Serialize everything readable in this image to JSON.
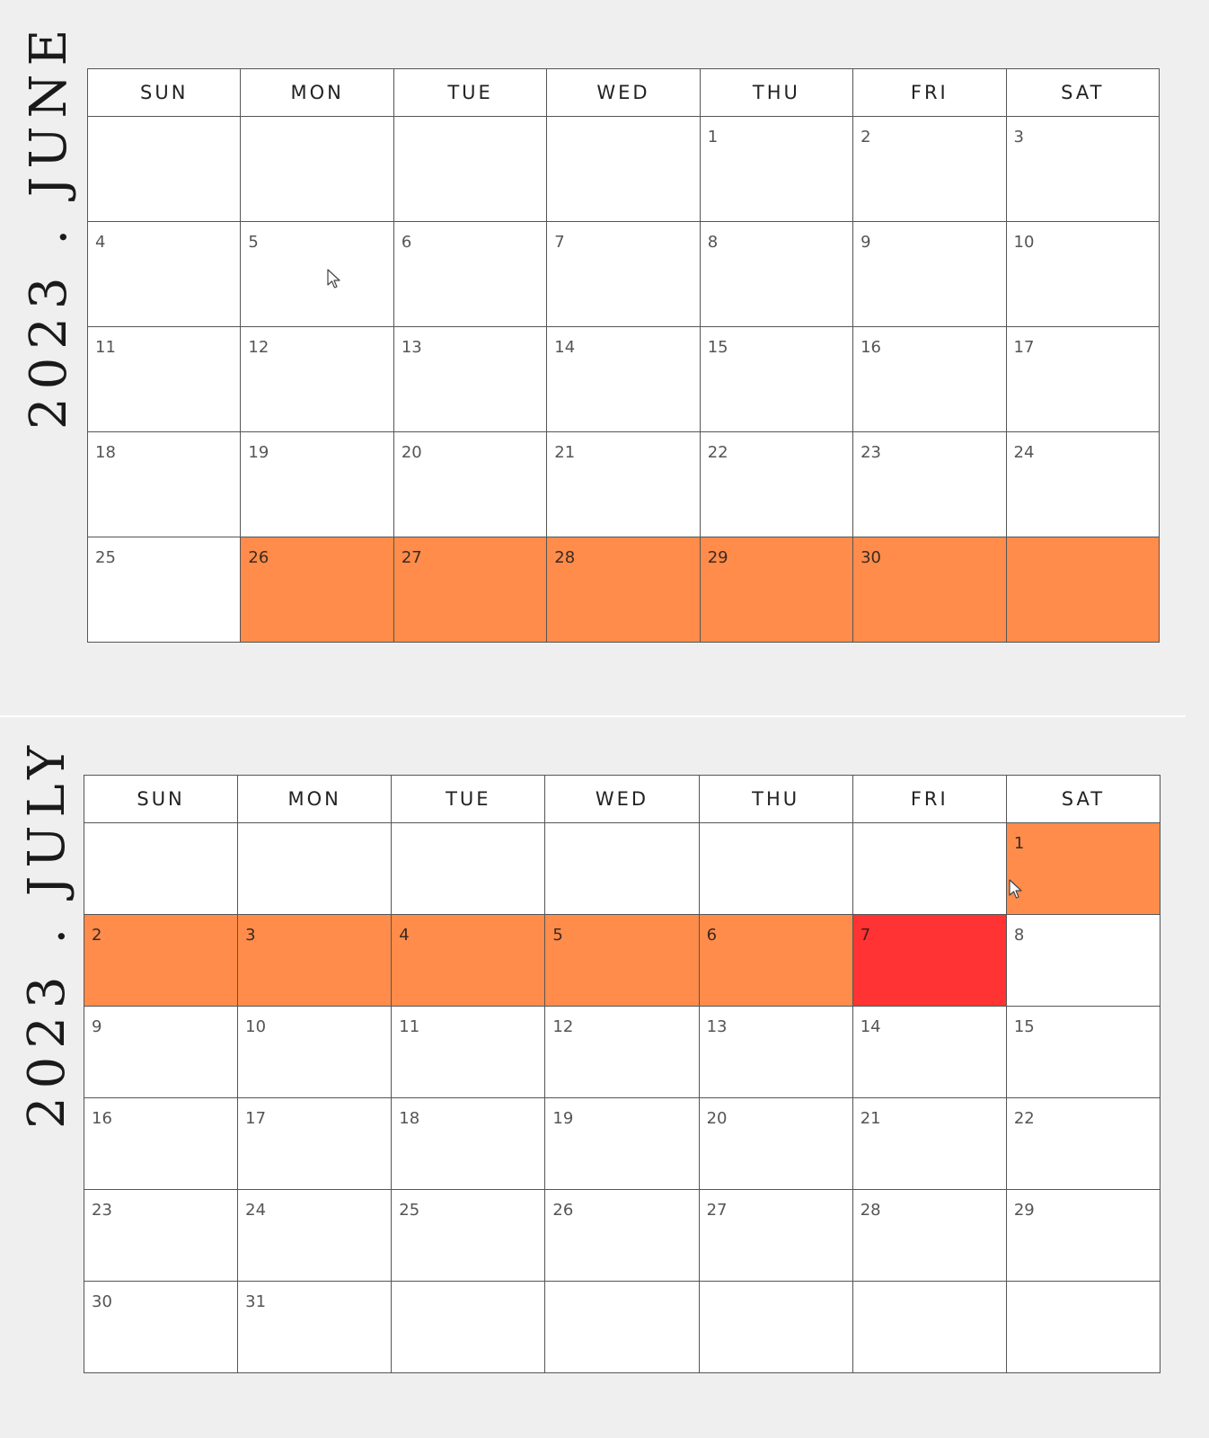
{
  "weekdays": [
    "SUN",
    "MON",
    "TUE",
    "WED",
    "THU",
    "FRI",
    "SAT"
  ],
  "colors": {
    "page_background": "#efefef",
    "cell_background": "#ffffff",
    "grid_line": "#555555",
    "highlight_orange": "#ff8c4a",
    "highlight_red": "#ff3333"
  },
  "cursor_icon": "mouse-pointer-icon",
  "months": [
    {
      "id": "june",
      "title": "2023 . JUNE",
      "weeks": [
        [
          {
            "day": ""
          },
          {
            "day": ""
          },
          {
            "day": ""
          },
          {
            "day": ""
          },
          {
            "day": "1"
          },
          {
            "day": "2"
          },
          {
            "day": "3"
          }
        ],
        [
          {
            "day": "4"
          },
          {
            "day": "5"
          },
          {
            "day": "6"
          },
          {
            "day": "7"
          },
          {
            "day": "8"
          },
          {
            "day": "9"
          },
          {
            "day": "10"
          }
        ],
        [
          {
            "day": "11"
          },
          {
            "day": "12"
          },
          {
            "day": "13"
          },
          {
            "day": "14"
          },
          {
            "day": "15"
          },
          {
            "day": "16"
          },
          {
            "day": "17"
          }
        ],
        [
          {
            "day": "18"
          },
          {
            "day": "19"
          },
          {
            "day": "20"
          },
          {
            "day": "21"
          },
          {
            "day": "22"
          },
          {
            "day": "23"
          },
          {
            "day": "24"
          }
        ],
        [
          {
            "day": "25"
          },
          {
            "day": "26",
            "highlight": "orange"
          },
          {
            "day": "27",
            "highlight": "orange"
          },
          {
            "day": "28",
            "highlight": "orange"
          },
          {
            "day": "29",
            "highlight": "orange"
          },
          {
            "day": "30",
            "highlight": "orange"
          },
          {
            "day": "",
            "highlight": "orange"
          }
        ]
      ]
    },
    {
      "id": "july",
      "title": "2023 . JULY",
      "weeks": [
        [
          {
            "day": ""
          },
          {
            "day": ""
          },
          {
            "day": ""
          },
          {
            "day": ""
          },
          {
            "day": ""
          },
          {
            "day": ""
          },
          {
            "day": "1",
            "highlight": "orange"
          }
        ],
        [
          {
            "day": "2",
            "highlight": "orange"
          },
          {
            "day": "3",
            "highlight": "orange"
          },
          {
            "day": "4",
            "highlight": "orange"
          },
          {
            "day": "5",
            "highlight": "orange"
          },
          {
            "day": "6",
            "highlight": "orange"
          },
          {
            "day": "7",
            "highlight": "red"
          },
          {
            "day": "8"
          }
        ],
        [
          {
            "day": "9"
          },
          {
            "day": "10"
          },
          {
            "day": "11"
          },
          {
            "day": "12"
          },
          {
            "day": "13"
          },
          {
            "day": "14"
          },
          {
            "day": "15"
          }
        ],
        [
          {
            "day": "16"
          },
          {
            "day": "17"
          },
          {
            "day": "18"
          },
          {
            "day": "19"
          },
          {
            "day": "20"
          },
          {
            "day": "21"
          },
          {
            "day": "22"
          }
        ],
        [
          {
            "day": "23"
          },
          {
            "day": "24"
          },
          {
            "day": "25"
          },
          {
            "day": "26"
          },
          {
            "day": "27"
          },
          {
            "day": "28"
          },
          {
            "day": "29"
          }
        ],
        [
          {
            "day": "30"
          },
          {
            "day": "31"
          },
          {
            "day": ""
          },
          {
            "day": ""
          },
          {
            "day": ""
          },
          {
            "day": ""
          },
          {
            "day": ""
          }
        ]
      ]
    }
  ]
}
